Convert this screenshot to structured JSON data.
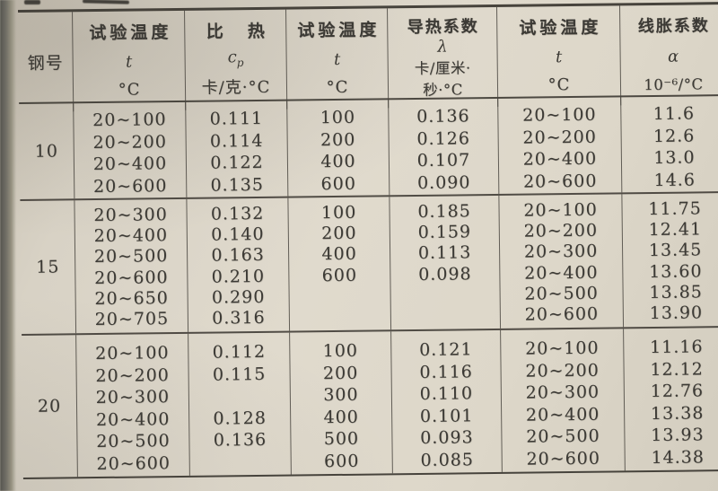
{
  "document": {
    "kind": "scanned steel thermal-properties table",
    "paper_color": "#ddd7c9",
    "ink_color": "#3c3a35"
  },
  "table": {
    "header": {
      "steel": "钢号",
      "temp1": {
        "title": "试验温度",
        "symbol": "t",
        "unit": "°C"
      },
      "cp": {
        "title": "比　热",
        "symbol_main": "c",
        "symbol_sub": "p",
        "unit": "卡/克·°C"
      },
      "temp2": {
        "title": "试验温度",
        "symbol": "t",
        "unit": "°C"
      },
      "lambda": {
        "title": "导热系数",
        "symbol": "λ",
        "unit_line1": "卡/厘米·",
        "unit_line2": "秒·°C"
      },
      "temp3": {
        "title": "试验温度",
        "symbol": "t",
        "unit": "°C"
      },
      "alpha": {
        "title": "线胀系数",
        "symbol": "α",
        "unit": "10⁻⁶/°C"
      }
    },
    "groups": [
      {
        "steel": "10",
        "test_temp_cp": [
          "20~100",
          "20~200",
          "20~400",
          "20~600"
        ],
        "cp_values": [
          "0.111",
          "0.114",
          "0.122",
          "0.135"
        ],
        "test_temp_lambda": [
          "100",
          "200",
          "400",
          "600"
        ],
        "lambda_values": [
          "0.136",
          "0.126",
          "0.107",
          "0.090"
        ],
        "test_temp_alpha": [
          "20~100",
          "20~200",
          "20~400",
          "20~600"
        ],
        "alpha_values": [
          "11.6",
          "12.6",
          "13.0",
          "14.6"
        ]
      },
      {
        "steel": "15",
        "test_temp_cp": [
          "20~300",
          "20~400",
          "20~500",
          "20~600",
          "20~650",
          "20~705"
        ],
        "cp_values": [
          "0.132",
          "0.140",
          "0.163",
          "0.210",
          "0.290",
          "0.316"
        ],
        "test_temp_lambda": [
          "100",
          "200",
          "400",
          "600"
        ],
        "lambda_values": [
          "0.185",
          "0.159",
          "0.113",
          "0.098"
        ],
        "test_temp_alpha": [
          "20~100",
          "20~200",
          "20~300",
          "20~400",
          "20~500",
          "20~600"
        ],
        "alpha_values": [
          "11.75",
          "12.41",
          "13.45",
          "13.60",
          "13.85",
          "13.90"
        ]
      },
      {
        "steel": "20",
        "test_temp_cp": [
          "20~100",
          "20~200",
          "20~300",
          "20~400",
          "20~500",
          "20~600"
        ],
        "cp_values": [
          "0.112",
          "0.115",
          "",
          "0.128",
          "0.136",
          ""
        ],
        "test_temp_lambda": [
          "100",
          "200",
          "300",
          "400",
          "500",
          "600"
        ],
        "lambda_values": [
          "0.121",
          "0.116",
          "0.110",
          "0.101",
          "0.093",
          "0.085"
        ],
        "test_temp_alpha": [
          "20~100",
          "20~200",
          "20~300",
          "20~400",
          "20~500",
          "20~600"
        ],
        "alpha_values": [
          "11.16",
          "12.12",
          "12.76",
          "13.38",
          "13.93",
          "14.38"
        ]
      }
    ]
  }
}
